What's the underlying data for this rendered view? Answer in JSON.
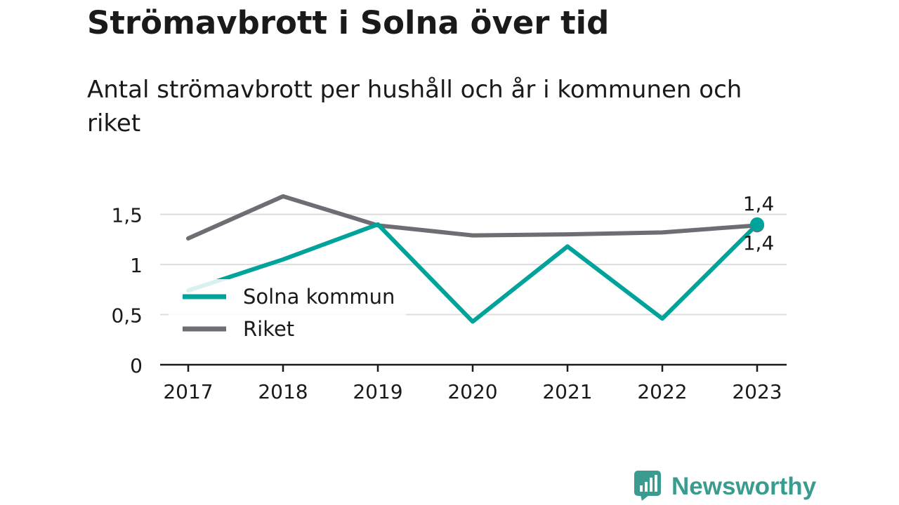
{
  "header": {
    "title": "Strömavbrott i Solna över tid",
    "subtitle": "Antal strömavbrott per hushåll och år i kommunen och riket"
  },
  "brand": {
    "name": "Newsworthy",
    "icon": "newsworthy-logo-icon",
    "color": "#3a9c8f"
  },
  "chart_data": {
    "type": "line",
    "categories": [
      "2017",
      "2018",
      "2019",
      "2020",
      "2021",
      "2022",
      "2023"
    ],
    "yticks": [
      {
        "value": 0,
        "label": "0"
      },
      {
        "value": 0.5,
        "label": "0,5"
      },
      {
        "value": 1,
        "label": "1"
      },
      {
        "value": 1.5,
        "label": "1,5"
      }
    ],
    "ylim": [
      0,
      1.72
    ],
    "grid": true,
    "legend_position": "lower-left",
    "series": [
      {
        "name": "Solna kommun",
        "color": "#00a39a",
        "values": [
          0.74,
          1.05,
          1.4,
          0.43,
          1.18,
          0.46,
          1.4
        ],
        "end_label": "1,4"
      },
      {
        "name": "Riket",
        "color": "#6d6d73",
        "values": [
          1.26,
          1.68,
          1.39,
          1.29,
          1.3,
          1.32,
          1.39
        ],
        "end_label": "1,4"
      }
    ]
  }
}
